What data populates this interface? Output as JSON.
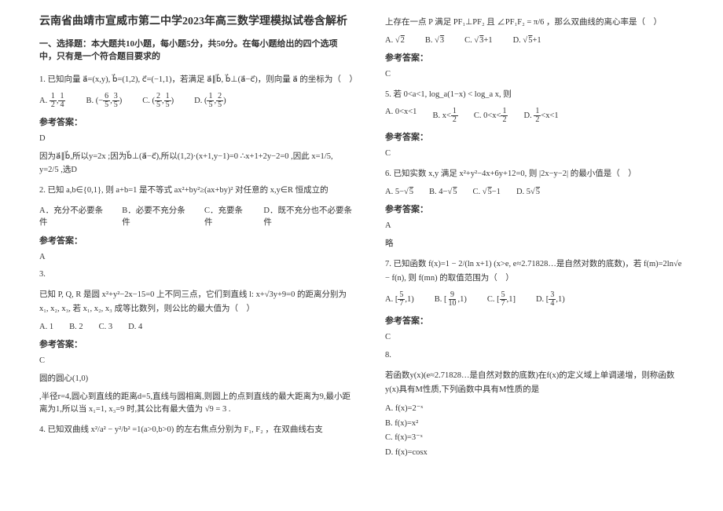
{
  "left": {
    "title": "云南省曲靖市宣威市第二中学2023年高三数学理模拟试卷含解析",
    "section_label": "一、选择题：本大题共10小题，每小题5分，共50分。在每小题给出的四个选项中，只有是一个符合题目要求的",
    "q1": {
      "stem": "1. 已知向量 a⃗=(x,y), b⃗=(1,2), c⃗=(−1,1)，若满足 a⃗∥b⃗, b⃗⊥(a⃗−c⃗)，则向量 a⃗ 的坐标为（　）",
      "opts": {
        "A": "(1/2, 1/4)",
        "B": "(−6/5, 3/5)",
        "C": "(2/5, 1/5)",
        "D": "(1/5, 2/5)"
      },
      "ans_letter": "D",
      "explain": "因为a⃗∥b⃗,所以y=2x ;因为b⃗⊥(a⃗−c⃗),所以(1,2)·(x+1,y−1)=0 ∴x+1+2y−2=0 ,因此 x=1/5, y=2/5 ,选D"
    },
    "q2": {
      "stem": "2. 已知 a,b∈{0,1}, 则 a+b=1 是不等式 ax²+by²≥(ax+by)² 对任意的 x,y∈R 恒成立的",
      "opts": {
        "A": "充分不必要条件",
        "B": "必要不充分条件",
        "C": "充要条件",
        "D": "既不充分也不必要条件"
      },
      "ans_letter": "A"
    },
    "q3": {
      "label": "3.",
      "stem": "已知 P, Q, R 是圆 x²+y²−2x−15=0 上不同三点，它们到直线 l: x+√3y+9=0 的距离分别为 x₁, x₂, x₃, 若 x₁, x₂, x₃ 成等比数列，则公比的最大值为（　）",
      "opts": {
        "A": "1",
        "B": "2",
        "C": "3",
        "D": "4"
      },
      "ans_letter": "C",
      "explain_head": "圆的圆心(1,0)",
      "explain": ",半径r=4,圆心到直线的距离d=5,直线与圆相离,则圆上的点到直线的最大距离为9,最小距离为1,所以当 x₁=1, x₃=9 时,其公比有最大值为 √9 = 3 ."
    },
    "q4": {
      "stem": "4. 已知双曲线 x²/a² − y²/b² =1(a>0,b>0) 的左右焦点分别为 F₁, F₂ ，在双曲线右支"
    },
    "ans_label": "参考答案："
  },
  "right": {
    "q4cont": {
      "stem": "上存在一点 P 满足 PF₁⊥PF₂ 且 ∠PF₁F₂ = π/6 ，那么双曲线的离心率是（　）",
      "opts": {
        "A": "√2",
        "B": "√3",
        "C": "√3+1",
        "D": "√5+1"
      },
      "ans_letter": "C"
    },
    "q5": {
      "stem": "5. 若 0<a<1,  log_a(1−x) < log_a x, 则",
      "opts": {
        "A": "0<x<1",
        "B": "x<1/2",
        "C": "0<x<1/2",
        "D": "1/2<x<1"
      },
      "ans_letter": "C"
    },
    "q6": {
      "stem": "6. 已知实数 x,y 满足 x²+y²−4x+6y+12=0, 则 |2x−y−2| 的最小值是（　）",
      "opts": {
        "A": "5−√5",
        "B": "4−√5",
        "C": "√5−1",
        "D": "5√5"
      },
      "ans_letter": "A",
      "explain": "略"
    },
    "q7": {
      "stem": "7. 已知函数 f(x)=1 − 2/(ln x+1) (x>e, e≈2.71828…是自然对数的底数)，若 f(m)=2ln√e − f(n), 则 f(mn) 的取值范围为（　）",
      "opts": {
        "A": "[5/7, 1)",
        "B": "[9/10, 1)",
        "C": "[5/7, 1]",
        "D": "[3/4, 1)"
      },
      "ans_letter": "C"
    },
    "q8": {
      "label": "8.",
      "stem": "若函数y(x)(e≈2.71828…是自然对数的底数)在f(x)的定义域上单调递增，则称函数y(x)具有M性质,下列函数中具有M性质的是",
      "opts": {
        "A": "f(x)=2⁻ˣ",
        "B": "f(x)=x²",
        "C": "f(x)=3⁻ˣ",
        "D": "f(x)=cosx"
      }
    },
    "ans_label": "参考答案："
  }
}
